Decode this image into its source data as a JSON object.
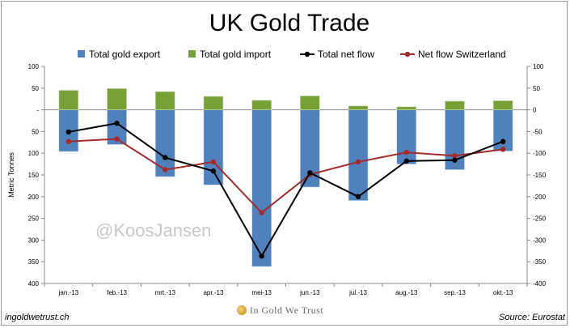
{
  "chart_data": {
    "type": "bar+line",
    "title": "UK Gold Trade",
    "ylabel": "Metric Tonnes",
    "ylim": [
      -400,
      100
    ],
    "yticks_left": [
      "100",
      "50",
      "-",
      "50",
      "100",
      "150",
      "200",
      "250",
      "300",
      "350",
      "400"
    ],
    "yticks_right": [
      "100",
      "50",
      "0",
      "-50",
      "-100",
      "-150",
      "-200",
      "-250",
      "-300",
      "-350",
      "-400"
    ],
    "categories": [
      "jan.-13",
      "feb.-13",
      "mrt.-13",
      "apr.-13",
      "mei-13",
      "jun.-13",
      "jul.-13",
      "aug.-13",
      "sep.-13",
      "okt.-13"
    ],
    "series": [
      {
        "name": "Total gold export",
        "type": "bar",
        "color": "#4f81bd",
        "values": [
          -96,
          -80,
          -154,
          -173,
          -361,
          -178,
          -209,
          -125,
          -138,
          -95
        ]
      },
      {
        "name": "Total gold import",
        "type": "bar",
        "color": "#77a037",
        "values": [
          45,
          49,
          42,
          31,
          22,
          32,
          9,
          7,
          20,
          21
        ]
      },
      {
        "name": "Total net flow",
        "type": "line",
        "color": "#000000",
        "values": [
          -51,
          -31,
          -110,
          -141,
          -337,
          -145,
          -200,
          -118,
          -116,
          -73
        ]
      },
      {
        "name": "Net flow Switzerland",
        "type": "line",
        "color": "#a52a2a",
        "values": [
          -73,
          -67,
          -138,
          -120,
          -237,
          -149,
          -120,
          -98,
          -106,
          -91
        ]
      }
    ],
    "legend_position": "top"
  },
  "watermark": "@KoosJansen",
  "footer": {
    "left": "ingoldwetrust.ch",
    "center": "In Gold We Trust",
    "right": "Source: Eurostat"
  }
}
